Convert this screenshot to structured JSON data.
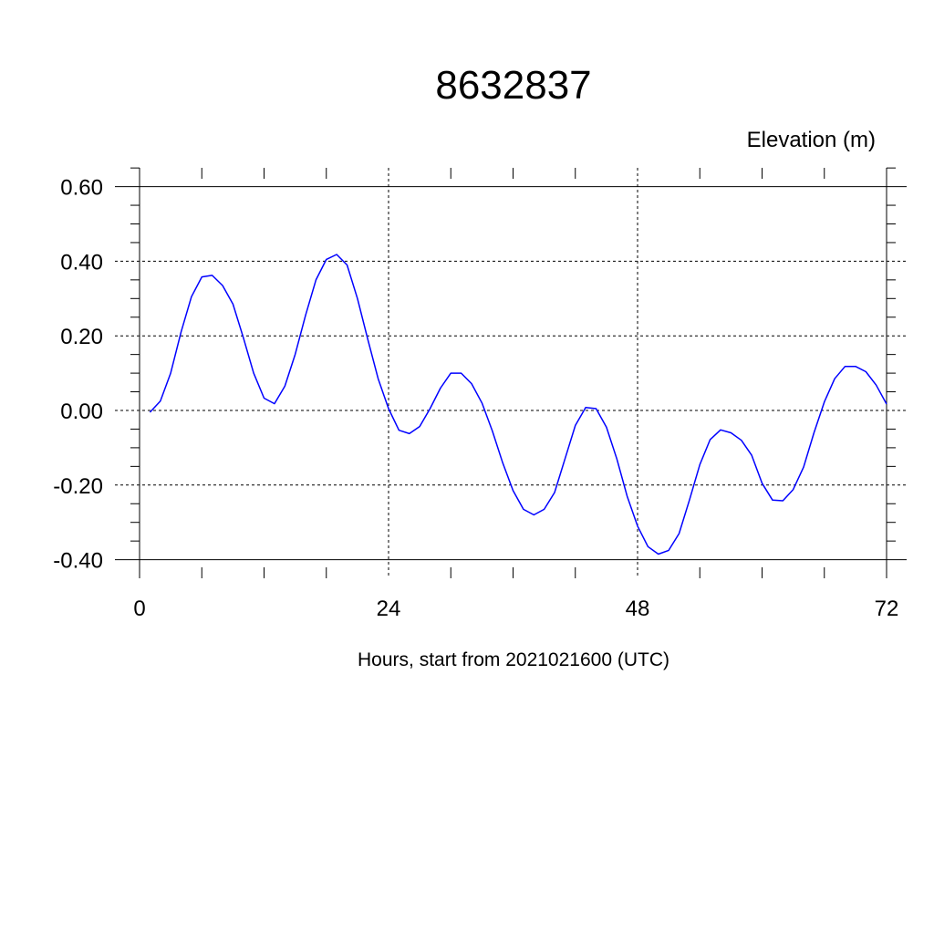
{
  "chart_data": {
    "type": "line",
    "title": "8632837",
    "unit_label": "Elevation (m)",
    "xlabel": "Hours, start from 2021021600 (UTC)",
    "ylabel": "",
    "xlim": [
      0,
      72
    ],
    "ylim": [
      -0.4,
      0.65
    ],
    "x_ticks": [
      0,
      24,
      48,
      72
    ],
    "x_tick_labels": [
      "0",
      "24",
      "48",
      "72"
    ],
    "y_ticks": [
      -0.4,
      -0.2,
      0.0,
      0.2,
      0.4,
      0.6
    ],
    "y_tick_labels": [
      "-0.40",
      "-0.20",
      "0.00",
      "0.20",
      "0.40",
      "0.60"
    ],
    "grid": true,
    "line_color": "#0000ff",
    "series": [
      {
        "x": [
          1,
          2,
          3,
          4,
          5,
          6,
          7,
          8,
          9,
          10,
          11,
          12,
          13,
          14,
          15,
          16,
          17,
          18,
          19,
          20,
          21,
          22,
          23,
          24,
          25,
          26,
          27,
          28,
          29,
          30,
          31,
          32,
          33,
          34,
          35,
          36,
          37,
          38,
          39,
          40,
          41,
          42,
          43,
          44,
          45,
          46,
          47,
          48,
          49,
          50,
          51,
          52,
          53,
          54,
          55,
          56,
          57,
          58,
          59,
          60,
          61,
          62,
          63,
          64,
          65,
          66,
          67,
          68,
          69,
          70,
          71,
          72
        ],
        "y": [
          -0.005,
          0.025,
          0.1,
          0.21,
          0.305,
          0.358,
          0.362,
          0.335,
          0.285,
          0.195,
          0.1,
          0.033,
          0.018,
          0.065,
          0.15,
          0.255,
          0.35,
          0.405,
          0.418,
          0.39,
          0.3,
          0.19,
          0.085,
          0.005,
          -0.053,
          -0.062,
          -0.043,
          0.005,
          0.06,
          0.1,
          0.1,
          0.072,
          0.02,
          -0.055,
          -0.14,
          -0.215,
          -0.265,
          -0.28,
          -0.265,
          -0.22,
          -0.13,
          -0.04,
          0.008,
          0.005,
          -0.045,
          -0.13,
          -0.23,
          -0.31,
          -0.365,
          -0.385,
          -0.375,
          -0.33,
          -0.24,
          -0.145,
          -0.078,
          -0.052,
          -0.06,
          -0.08,
          -0.12,
          -0.195,
          -0.24,
          -0.242,
          -0.212,
          -0.152,
          -0.06,
          0.023,
          0.085,
          0.118,
          0.118,
          0.104,
          0.068,
          0.017
        ]
      }
    ]
  }
}
